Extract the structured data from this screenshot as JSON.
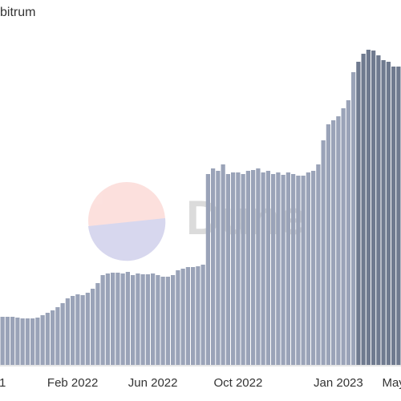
{
  "chart_data": {
    "type": "bar",
    "title": "bitrum",
    "watermark": "Dune",
    "categories": [
      "1",
      null,
      null,
      null,
      null,
      null,
      null,
      null,
      null,
      null,
      null,
      null,
      null,
      null,
      "Feb 2022",
      null,
      null,
      null,
      null,
      null,
      null,
      null,
      null,
      null,
      null,
      null,
      null,
      null,
      null,
      null,
      "Jun 2022",
      null,
      null,
      null,
      null,
      null,
      null,
      null,
      null,
      null,
      null,
      null,
      null,
      null,
      null,
      null,
      null,
      "Oct 2022",
      null,
      null,
      null,
      null,
      null,
      null,
      null,
      null,
      null,
      null,
      null,
      null,
      null,
      null,
      null,
      null,
      null,
      null,
      null,
      "Jan 2023",
      null,
      null,
      null,
      null,
      null,
      null,
      null,
      null,
      null,
      null,
      "May",
      null
    ],
    "values": [
      60,
      60,
      60,
      59,
      58,
      58,
      58,
      59,
      62,
      65,
      68,
      72,
      77,
      83,
      86,
      88,
      87,
      90,
      95,
      102,
      112,
      114,
      115,
      115,
      114,
      116,
      112,
      114,
      113,
      113,
      114,
      112,
      110,
      110,
      112,
      118,
      120,
      122,
      122,
      123,
      125,
      238,
      245,
      242,
      250,
      238,
      240,
      240,
      238,
      242,
      243,
      245,
      240,
      242,
      238,
      240,
      237,
      240,
      238,
      236,
      236,
      240,
      242,
      250,
      280,
      300,
      305,
      310,
      320,
      330,
      365,
      378,
      388,
      393,
      392,
      386,
      380,
      378,
      372,
      372
    ],
    "color": "#9aa3b8",
    "highlight_color": "#6f7a8f",
    "highlight_from": 71,
    "ylim": [
      0,
      420
    ]
  }
}
